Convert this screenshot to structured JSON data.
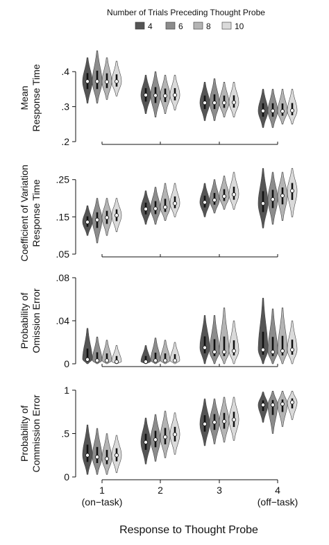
{
  "chart_data": {
    "type": "violin",
    "legend": {
      "title": "Number of Trials Preceding Thought Probe",
      "placement": "top-center",
      "entries": [
        "4",
        "6",
        "8",
        "10"
      ],
      "colors": [
        "#555555",
        "#8c8c8c",
        "#b4b4b4",
        "#dadada"
      ]
    },
    "x": {
      "title": "Response to Thought Probe",
      "categories": [
        "1",
        "2",
        "3",
        "4"
      ],
      "sublabels": [
        "(on−task)",
        "",
        "",
        "(off−task)"
      ]
    },
    "panels": [
      {
        "ylabel_lines": [
          "Mean",
          "Response Time"
        ],
        "ylim": [
          0.2,
          0.45
        ],
        "yticks": [
          0.2,
          0.3,
          0.4
        ],
        "ytick_labels": [
          ".2",
          ".3",
          ".4"
        ],
        "medians": [
          [
            0.372,
            0.372,
            0.371,
            0.372
          ],
          [
            0.333,
            0.332,
            0.331,
            0.333
          ],
          [
            0.311,
            0.311,
            0.311,
            0.312
          ],
          [
            0.288,
            0.288,
            0.287,
            0.289
          ]
        ],
        "ranges": [
          [
            [
              0.31,
              0.44
            ],
            [
              0.31,
              0.46
            ],
            [
              0.32,
              0.44
            ],
            [
              0.33,
              0.43
            ]
          ],
          [
            [
              0.28,
              0.39
            ],
            [
              0.27,
              0.4
            ],
            [
              0.28,
              0.39
            ],
            [
              0.29,
              0.39
            ]
          ],
          [
            [
              0.26,
              0.37
            ],
            [
              0.26,
              0.38
            ],
            [
              0.27,
              0.37
            ],
            [
              0.27,
              0.37
            ]
          ],
          [
            [
              0.24,
              0.35
            ],
            [
              0.24,
              0.35
            ],
            [
              0.25,
              0.35
            ],
            [
              0.25,
              0.35
            ]
          ]
        ]
      },
      {
        "ylabel_lines": [
          "Coefficient of Variation",
          "Response Time"
        ],
        "ylim": [
          0.05,
          0.27
        ],
        "yticks": [
          0.05,
          0.15,
          0.25
        ],
        "ytick_labels": [
          ".05",
          ".15",
          ".25"
        ],
        "medians": [
          [
            0.136,
            0.142,
            0.148,
            0.154
          ],
          [
            0.171,
            0.172,
            0.176,
            0.186
          ],
          [
            0.189,
            0.195,
            0.205,
            0.21
          ],
          [
            0.186,
            0.197,
            0.207,
            0.22
          ]
        ],
        "ranges": [
          [
            [
              0.1,
              0.18
            ],
            [
              0.08,
              0.2
            ],
            [
              0.1,
              0.2
            ],
            [
              0.11,
              0.2
            ]
          ],
          [
            [
              0.13,
              0.22
            ],
            [
              0.13,
              0.23
            ],
            [
              0.14,
              0.24
            ],
            [
              0.15,
              0.24
            ]
          ],
          [
            [
              0.15,
              0.24
            ],
            [
              0.16,
              0.25
            ],
            [
              0.17,
              0.26
            ],
            [
              0.17,
              0.27
            ]
          ],
          [
            [
              0.12,
              0.28
            ],
            [
              0.13,
              0.27
            ],
            [
              0.14,
              0.27
            ],
            [
              0.15,
              0.28
            ]
          ]
        ]
      },
      {
        "ylabel_lines": [
          "Probability of",
          "Omission Error"
        ],
        "ylim": [
          0,
          0.08
        ],
        "yticks": [
          0,
          0.04,
          0.08
        ],
        "ytick_labels": [
          "0",
          ".04",
          ".08"
        ],
        "medians": [
          [
            0.004,
            0.003,
            0.003,
            0.002
          ],
          [
            0.002,
            0.003,
            0.003,
            0.003
          ],
          [
            0.015,
            0.011,
            0.011,
            0.012
          ],
          [
            0.013,
            0.011,
            0.012,
            0.013
          ]
        ],
        "ranges": [
          [
            [
              0,
              0.033
            ],
            [
              0,
              0.025
            ],
            [
              0,
              0.022
            ],
            [
              0,
              0.017
            ]
          ],
          [
            [
              0,
              0.017
            ],
            [
              0,
              0.024
            ],
            [
              0,
              0.022
            ],
            [
              0,
              0.02
            ]
          ],
          [
            [
              0,
              0.045
            ],
            [
              0,
              0.045
            ],
            [
              0,
              0.052
            ],
            [
              0,
              0.04
            ]
          ],
          [
            [
              0,
              0.061
            ],
            [
              0,
              0.051
            ],
            [
              0,
              0.052
            ],
            [
              0,
              0.04
            ]
          ]
        ]
      },
      {
        "ylabel_lines": [
          "Probability of",
          "Commission Error"
        ],
        "ylim": [
          0,
          1
        ],
        "yticks": [
          0,
          0.5,
          1
        ],
        "ytick_labels": [
          "0",
          ".5",
          "1"
        ],
        "medians": [
          [
            0.25,
            0.23,
            0.21,
            0.25
          ],
          [
            0.4,
            0.43,
            0.46,
            0.49
          ],
          [
            0.61,
            0.63,
            0.64,
            0.66
          ],
          [
            0.83,
            0.83,
            0.84,
            0.86
          ]
        ],
        "ranges": [
          [
            [
              0.03,
              0.6
            ],
            [
              0.03,
              0.56
            ],
            [
              0.03,
              0.5
            ],
            [
              0.05,
              0.48
            ]
          ],
          [
            [
              0.15,
              0.68
            ],
            [
              0.18,
              0.72
            ],
            [
              0.22,
              0.76
            ],
            [
              0.26,
              0.74
            ]
          ],
          [
            [
              0.36,
              0.9
            ],
            [
              0.38,
              0.9
            ],
            [
              0.4,
              0.92
            ],
            [
              0.42,
              0.92
            ]
          ],
          [
            [
              0.63,
              0.98
            ],
            [
              0.5,
              0.99
            ],
            [
              0.58,
              0.99
            ],
            [
              0.66,
              0.99
            ]
          ]
        ]
      }
    ]
  }
}
